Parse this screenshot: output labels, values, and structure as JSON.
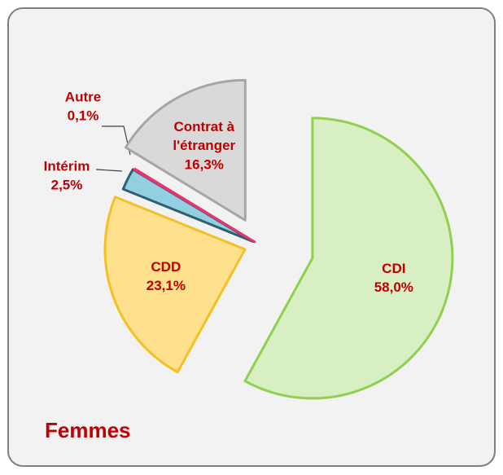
{
  "chart_data": {
    "type": "pie",
    "title": "Femmes",
    "categories": [
      "CDI",
      "CDD",
      "Intérim",
      "Autre",
      "Contrat à l'étranger"
    ],
    "values": [
      58.0,
      23.1,
      2.5,
      0.1,
      16.3
    ],
    "value_labels": [
      "58,0%",
      "23,1%",
      "2,5%",
      "0,1%",
      "16,3%"
    ],
    "colors": [
      "#d7efc2",
      "#ffe08c",
      "#92cfe0",
      "#e8336e",
      "#d9d9d9"
    ],
    "edge_colors": [
      "#8fd14f",
      "#f5c026",
      "#2f5f72",
      "#e8336e",
      "#a6a6a6"
    ]
  }
}
